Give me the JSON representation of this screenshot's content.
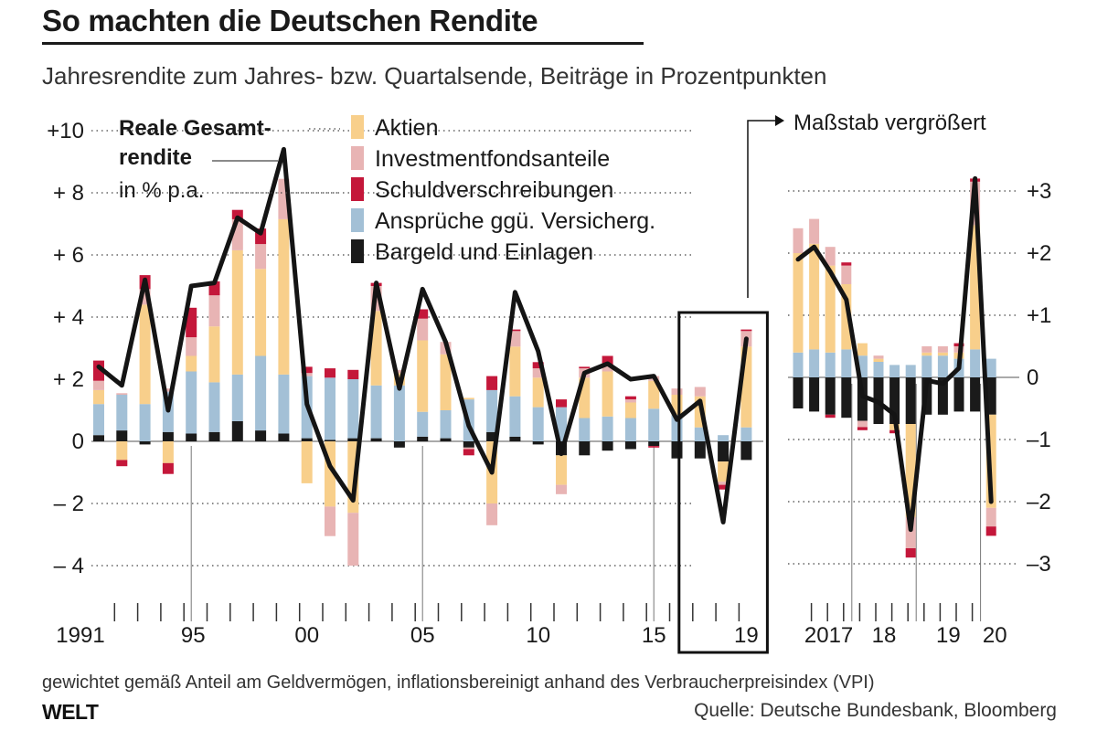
{
  "header": {
    "title": "So machten die Deutschen Rendite",
    "subtitle": "Jahresrendite zum Jahres- bzw. Quartalsende, Beiträge in Prozentpunkten"
  },
  "footer": {
    "footnote": "gewichtet gemäß Anteil am Geldvermögen, inflationsbereinigt anhand des Verbraucherpreisindex (VPI)",
    "logo": "WELT",
    "source": "Quelle: Deutsche Bundesbank, Bloomberg"
  },
  "legend": {
    "line_label_bold": [
      "Reale Gesamt-",
      "rendite"
    ],
    "line_label_unit": "in % p.a.",
    "zoom_label": "Maßstab vergrößert"
  },
  "colors": {
    "Aktien": "#f8cf8b",
    "Investmentfondsanteile": "#e8b4b4",
    "Schuldverschreibungen": "#c4173a",
    "Ansprüche ggü. Versicherg.": "#a3c0d6",
    "Bargeld und Einlagen": "#1a1a1a",
    "line": "#141414"
  },
  "chart_data": [
    {
      "type": "bar",
      "stacked": true,
      "title": "Jährlich",
      "x": [
        1991,
        1992,
        1993,
        1994,
        1995,
        1996,
        1997,
        1998,
        1999,
        2000,
        2001,
        2002,
        2003,
        2004,
        2005,
        2006,
        2007,
        2008,
        2009,
        2010,
        2011,
        2012,
        2013,
        2014,
        2015,
        2016,
        2017,
        2018,
        2019
      ],
      "x_tick_labels": [
        "1991",
        "95",
        "00",
        "05",
        "10",
        "15",
        "19"
      ],
      "y_tick_labels": [
        "+10",
        "+ 8",
        "+ 6",
        "+ 4",
        "+ 2",
        "0",
        "– 2",
        "– 4"
      ],
      "ylim": [
        -4.5,
        10.5
      ],
      "grid": "dotted horizontal",
      "series": [
        {
          "name": "Bargeld und Einlagen",
          "values": [
            0.2,
            0.35,
            -0.1,
            0.3,
            0.25,
            0.3,
            0.65,
            0.35,
            0.25,
            0.1,
            0.05,
            0.1,
            0.1,
            -0.2,
            0.15,
            0.1,
            -0.2,
            0.3,
            0.15,
            -0.1,
            -0.45,
            -0.45,
            -0.3,
            -0.25,
            -0.15,
            -0.55,
            -0.55,
            -0.65,
            -0.6
          ]
        },
        {
          "name": "Ansprüche ggü. Versicherg.",
          "values": [
            1.0,
            1.15,
            1.2,
            1.3,
            2.0,
            1.6,
            1.5,
            2.4,
            1.9,
            2.0,
            2.0,
            1.9,
            1.7,
            1.8,
            0.8,
            0.9,
            1.35,
            1.35,
            1.3,
            1.1,
            1.1,
            0.75,
            0.8,
            0.75,
            1.05,
            0.85,
            0.45,
            0.2,
            0.45
          ]
        },
        {
          "name": "Aktien",
          "values": [
            0.45,
            -0.6,
            3.2,
            -0.7,
            0.5,
            1.8,
            4.0,
            2.8,
            5.0,
            -1.35,
            -2.1,
            -2.3,
            2.4,
            0.4,
            2.3,
            1.8,
            0.05,
            -2.0,
            1.6,
            0.95,
            -0.95,
            1.3,
            1.45,
            0.5,
            0.9,
            0.65,
            1.0,
            -0.65,
            2.6
          ]
        },
        {
          "name": "Investmentfondsanteile",
          "values": [
            0.3,
            0.05,
            0.5,
            0.1,
            0.6,
            1.0,
            1.0,
            0.8,
            1.3,
            0.1,
            -0.95,
            -1.7,
            0.8,
            0.1,
            0.7,
            0.4,
            -0.05,
            -0.7,
            0.5,
            0.3,
            -0.3,
            0.3,
            0.2,
            0.1,
            0.15,
            0.2,
            0.3,
            -0.1,
            0.5
          ]
        },
        {
          "name": "Schuldverschreibungen",
          "values": [
            0.65,
            -0.2,
            0.45,
            -0.35,
            0.95,
            0.45,
            0.3,
            0.5,
            0.0,
            0.2,
            0.3,
            0.3,
            0.1,
            0.0,
            0.3,
            0.0,
            -0.2,
            0.45,
            0.05,
            0.2,
            0.25,
            0.05,
            0.3,
            0.1,
            -0.05,
            0.0,
            0.0,
            -0.15,
            0.05
          ]
        }
      ],
      "line": {
        "name": "Reale Gesamtrendite",
        "unit": "% p.a.",
        "values": [
          2.4,
          1.8,
          5.2,
          1.0,
          5.0,
          5.1,
          7.2,
          6.7,
          9.4,
          1.2,
          -0.8,
          -1.9,
          5.1,
          1.7,
          4.9,
          3.2,
          0.5,
          -1.0,
          4.8,
          2.9,
          -0.4,
          2.2,
          2.5,
          2.0,
          2.1,
          0.7,
          1.3,
          -2.6,
          3.3
        ]
      },
      "highlight_box": {
        "from": 2017,
        "to": 2019
      }
    },
    {
      "type": "bar",
      "stacked": true,
      "title": "Quartalsweise",
      "x": [
        "2017-Q1",
        "2017-Q2",
        "2017-Q3",
        "2017-Q4",
        "2018-Q1",
        "2018-Q2",
        "2018-Q3",
        "2018-Q4",
        "2019-Q1",
        "2019-Q2",
        "2019-Q3",
        "2019-Q4",
        "2020-Q1"
      ],
      "x_tick_labels": [
        "2017",
        "18",
        "19",
        "20"
      ],
      "y_tick_labels": [
        "+3",
        "+2",
        "+1",
        "0",
        "–1",
        "–2",
        "–3"
      ],
      "ylim": [
        -3.3,
        3.8
      ],
      "grid": "dotted horizontal",
      "series": [
        {
          "name": "Bargeld und Einlagen",
          "values": [
            -0.5,
            -0.55,
            -0.6,
            -0.65,
            -0.7,
            -0.75,
            -0.75,
            -0.75,
            -0.6,
            -0.6,
            -0.55,
            -0.55,
            -0.6
          ]
        },
        {
          "name": "Ansprüche ggü. Versicherg.",
          "values": [
            0.4,
            0.45,
            0.4,
            0.45,
            0.35,
            0.25,
            0.2,
            0.2,
            0.35,
            0.35,
            0.3,
            0.45,
            0.3
          ]
        },
        {
          "name": "Aktien",
          "values": [
            1.6,
            1.7,
            1.4,
            1.05,
            0.2,
            0.05,
            -0.1,
            -1.5,
            0.05,
            0.05,
            0.1,
            2.0,
            -1.5
          ]
        },
        {
          "name": "Investmentfondsanteile",
          "values": [
            0.4,
            0.4,
            0.3,
            0.3,
            -0.1,
            0.05,
            0.0,
            -0.5,
            0.1,
            0.1,
            0.1,
            0.7,
            -0.3
          ]
        },
        {
          "name": "Schuldverschreibungen",
          "values": [
            0.0,
            0.0,
            -0.05,
            0.05,
            -0.05,
            0.0,
            -0.05,
            -0.15,
            0.0,
            0.0,
            0.05,
            0.05,
            -0.15
          ]
        }
      ],
      "line": {
        "name": "Reale Gesamtrendite",
        "unit": "% p.a.",
        "values": [
          1.9,
          2.1,
          1.7,
          1.25,
          -0.3,
          -0.4,
          -0.6,
          -2.45,
          -0.05,
          -0.1,
          0.15,
          3.2,
          -2.0
        ]
      }
    }
  ]
}
